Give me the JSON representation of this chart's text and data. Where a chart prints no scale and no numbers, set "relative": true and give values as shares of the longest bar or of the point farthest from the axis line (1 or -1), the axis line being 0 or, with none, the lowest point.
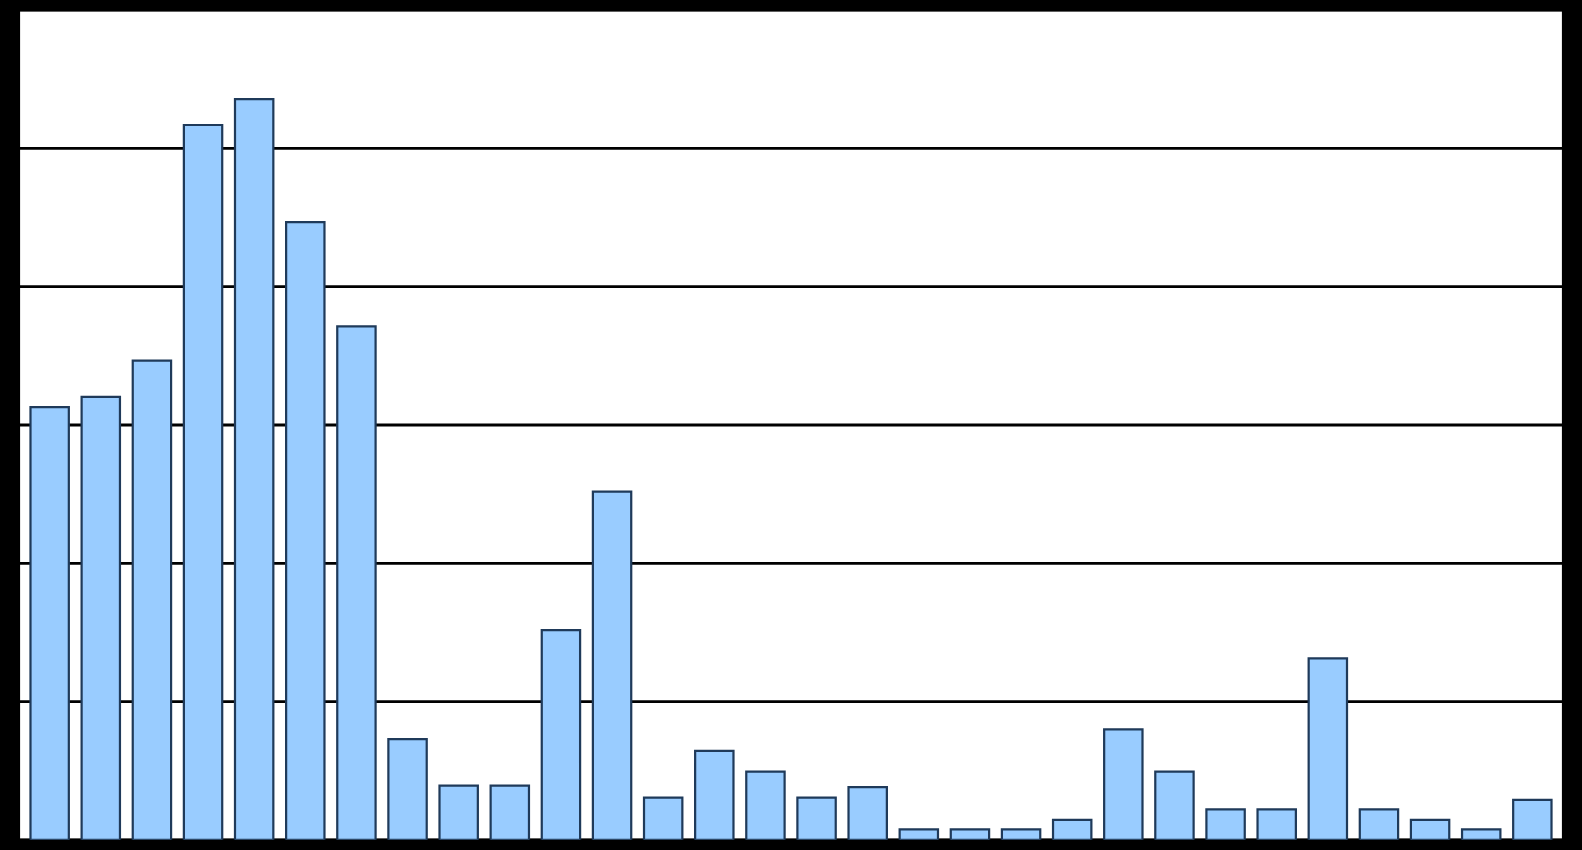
{
  "chart_data": {
    "type": "bar",
    "relative": true,
    "grid": "y",
    "categories": [
      null,
      null,
      null,
      null,
      null,
      null,
      null,
      null,
      null,
      null,
      null,
      null,
      null,
      null,
      null,
      null,
      null,
      null,
      null,
      null,
      null,
      null,
      null,
      null,
      null,
      null,
      null,
      null,
      null,
      null
    ],
    "series": [
      {
        "color": "#99ccff",
        "values": [
          0.584,
          0.598,
          0.647,
          0.965,
          1,
          0.834,
          0.693,
          0.136,
          0.073,
          0.073,
          0.283,
          0.47,
          0.057,
          0.12,
          0.092,
          0.057,
          0.071,
          0.014,
          0.014,
          0.014,
          0.027,
          0.149,
          0.092,
          0.041,
          0.041,
          0.245,
          0.041,
          0.027,
          0.014,
          0.054
        ]
      }
    ]
  }
}
